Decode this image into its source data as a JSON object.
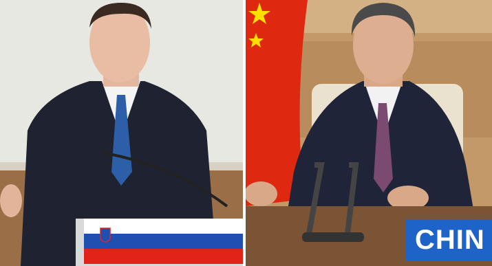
{
  "right_nameplate": {
    "label": "CHIN"
  },
  "colors": {
    "slovenia_white": "#ffffff",
    "slovenia_blue": "#1f4fb0",
    "slovenia_red": "#e2231a",
    "china_red": "#de2910",
    "china_yellow": "#ffde00",
    "nameplate_blue": "#1e63c8"
  }
}
